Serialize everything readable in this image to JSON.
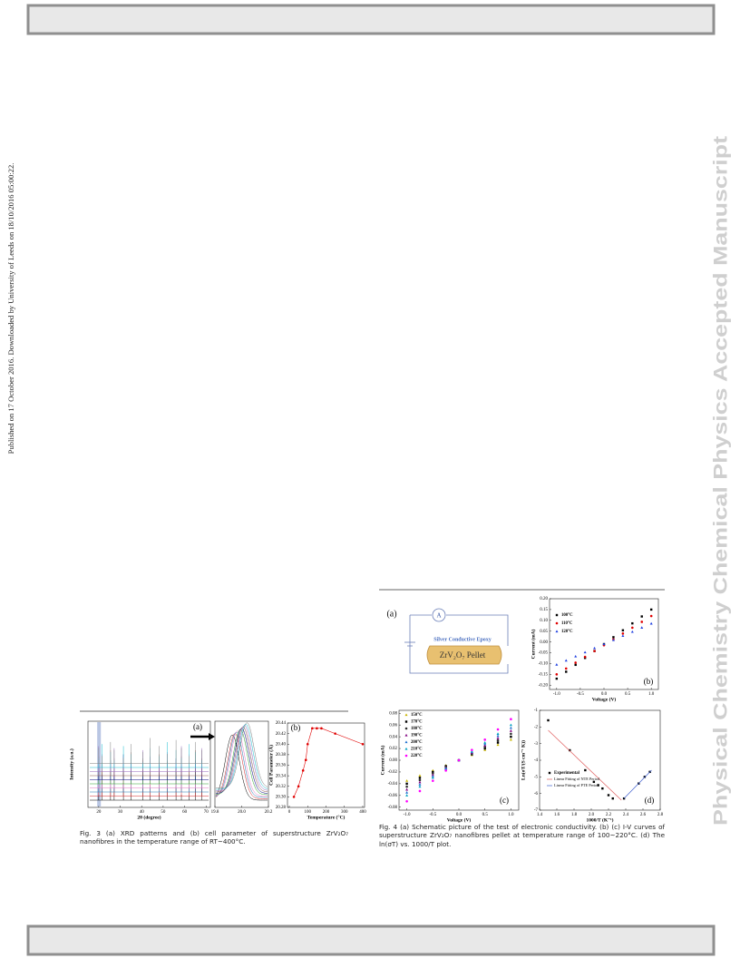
{
  "sidebar": {
    "left": "Published on 17 October 2016. Downloaded by University of Leeds on 18/10/2016 05:00:22.",
    "right": "Physical Chemistry Chemical Physics Accepted Manuscript"
  },
  "figure3": {
    "caption": "Fig. 3 (a) XRD patterns and (b) cell parameter of superstructure ZrV₂O₇ nanofibres in the temperature range of RT~400°C.",
    "a": {
      "label": "(a)",
      "xlabel": "2θ (degree)",
      "ylabel": "Intensity (a.u.)",
      "xlim": [
        15,
        72
      ],
      "xticks": [
        20,
        30,
        40,
        50,
        60,
        70
      ],
      "peaks": [
        20.0,
        21.6,
        25.5,
        27.2,
        31.5,
        35.0,
        40.5,
        44.0,
        48.2,
        52.0,
        56.0,
        58.5,
        62.0,
        65.0,
        68.0
      ],
      "pattern_colors": [
        "#000000",
        "#d62728",
        "#1f77b4",
        "#e377c2",
        "#2ca02c",
        "#000080",
        "#8c564b",
        "#9467bd",
        "#17becf",
        "#7f7f7f"
      ],
      "inset_xlim": [
        19.8,
        20.2
      ],
      "inset_xticks": [
        {
          "value": 19.8,
          "label": "19.8"
        },
        {
          "value": 20.0,
          "label": "20.0"
        },
        {
          "value": 20.2,
          "label": "20.2"
        }
      ],
      "inset_centers": [
        19.93,
        19.95,
        19.96,
        19.97,
        19.99,
        20.0,
        20.01,
        20.02,
        20.03,
        20.04
      ]
    },
    "b": {
      "label": "(b)",
      "xlabel": "Temperature (°C)",
      "ylabel": "Cell Parameter (Å)",
      "xlim": [
        -10,
        410
      ],
      "xticks": [
        0,
        100,
        200,
        300,
        400
      ],
      "ylim": [
        20.28,
        20.44
      ],
      "yticks": [
        {
          "value": 20.28,
          "label": "20.28"
        },
        {
          "value": 20.3,
          "label": "20.30"
        },
        {
          "value": 20.32,
          "label": "20.32"
        },
        {
          "value": 20.34,
          "label": "20.34"
        },
        {
          "value": 20.36,
          "label": "20.36"
        },
        {
          "value": 20.38,
          "label": "20.38"
        },
        {
          "value": 20.4,
          "label": "20.40"
        },
        {
          "value": 20.42,
          "label": "20.42"
        },
        {
          "value": 20.44,
          "label": "20.44"
        }
      ],
      "x": [
        25,
        50,
        75,
        90,
        100,
        125,
        150,
        175,
        250,
        400
      ],
      "series": [
        {
          "color": "#e00000",
          "values": [
            20.3,
            20.32,
            20.35,
            20.37,
            20.4,
            20.43,
            20.43,
            20.43,
            20.42,
            20.4
          ]
        }
      ]
    }
  },
  "figure4": {
    "caption": "Fig. 4 (a) Schematic picture of the test of electronic conductivity. (b) (c) I-V curves of superstructure ZrV₂O₇ nanofibres pellet at temperature range of 100~220°C. (d) The ln(σT) vs. 1000/T plot.",
    "a": {
      "label": "(a)",
      "meter": "A",
      "epoxy": "Silver Conductive Epoxy",
      "pellet": "ZrV₂O₇ Pellet"
    },
    "b": {
      "label": "(b)",
      "xlabel": "Voltage (V)",
      "ylabel": "Current (mA)",
      "xlim": [
        -1.15,
        1.15
      ],
      "xticks": [
        {
          "value": -1.0,
          "label": "-1.0"
        },
        {
          "value": -0.5,
          "label": "-0.5"
        },
        {
          "value": 0.0,
          "label": "0.0"
        },
        {
          "value": 0.5,
          "label": "0.5"
        },
        {
          "value": 1.0,
          "label": "1.0"
        }
      ],
      "ylim": [
        -0.22,
        0.2
      ],
      "yticks": [
        {
          "value": -0.2,
          "label": "-0.20"
        },
        {
          "value": -0.15,
          "label": "-0.15"
        },
        {
          "value": -0.1,
          "label": "-0.10"
        },
        {
          "value": -0.05,
          "label": "-0.05"
        },
        {
          "value": 0,
          "label": "0.00"
        },
        {
          "value": 0.05,
          "label": "0.05"
        },
        {
          "value": 0.1,
          "label": "0.10"
        },
        {
          "value": 0.15,
          "label": "0.15"
        },
        {
          "value": 0.2,
          "label": "0.20"
        }
      ],
      "x": [
        -1,
        -0.8,
        -0.6,
        -0.4,
        -0.2,
        0,
        0.2,
        0.4,
        0.6,
        0.8,
        1
      ],
      "series": [
        {
          "name": "100°C",
          "color": "#000000",
          "marker": "square",
          "values": [
            -0.17,
            -0.138,
            -0.106,
            -0.074,
            -0.042,
            -0.01,
            0.022,
            0.054,
            0.086,
            0.118,
            0.15
          ]
        },
        {
          "name": "110°C",
          "color": "#e00000",
          "marker": "circle",
          "values": [
            -0.15,
            -0.123,
            -0.096,
            -0.069,
            -0.042,
            -0.015,
            0.012,
            0.039,
            0.066,
            0.093,
            0.12
          ]
        },
        {
          "name": "120°C",
          "color": "#2040e0",
          "marker": "triangle",
          "values": [
            -0.105,
            -0.086,
            -0.067,
            -0.048,
            -0.029,
            -0.01,
            0.009,
            0.028,
            0.047,
            0.066,
            0.085
          ]
        }
      ]
    },
    "c": {
      "label": "(c)",
      "xlabel": "Voltage (V)",
      "ylabel": "Current (mA)",
      "xlim": [
        -1.15,
        1.15
      ],
      "xticks": [
        {
          "value": -1.0,
          "label": "-1.0"
        },
        {
          "value": -0.5,
          "label": "-0.5"
        },
        {
          "value": 0.0,
          "label": "0.0"
        },
        {
          "value": 0.5,
          "label": "0.5"
        },
        {
          "value": 1.0,
          "label": "1.0"
        }
      ],
      "ylim": [
        -0.085,
        0.085
      ],
      "yticks": [
        {
          "value": -0.08,
          "label": "-0.08"
        },
        {
          "value": -0.06,
          "label": "-0.06"
        },
        {
          "value": -0.04,
          "label": "-0.04"
        },
        {
          "value": -0.02,
          "label": "-0.02"
        },
        {
          "value": 0,
          "label": "0.00"
        },
        {
          "value": 0.02,
          "label": "0.02"
        },
        {
          "value": 0.04,
          "label": "0.04"
        },
        {
          "value": 0.06,
          "label": "0.06"
        },
        {
          "value": 0.08,
          "label": "0.08"
        }
      ],
      "x": [
        -1,
        -0.75,
        -0.5,
        -0.25,
        0,
        0.25,
        0.5,
        0.75,
        1
      ],
      "series": [
        {
          "name": "150°C",
          "color": "#c8b400",
          "marker": "triangle",
          "values": [
            -0.035,
            -0.0263,
            -0.0175,
            -0.0088,
            0,
            0.0088,
            0.0175,
            0.0263,
            0.035
          ]
        },
        {
          "name": "170°C",
          "color": "#000000",
          "marker": "square",
          "values": [
            -0.04,
            -0.03,
            -0.02,
            -0.01,
            0,
            0.01,
            0.02,
            0.03,
            0.04
          ]
        },
        {
          "name": "180°C",
          "color": "#303030",
          "marker": "circle",
          "values": [
            -0.045,
            -0.0338,
            -0.0225,
            -0.0113,
            0,
            0.0113,
            0.0225,
            0.0338,
            0.045
          ]
        },
        {
          "name": "190°C",
          "color": "#800080",
          "marker": "triangle",
          "values": [
            -0.05,
            -0.0375,
            -0.025,
            -0.0125,
            0,
            0.0125,
            0.025,
            0.0375,
            0.05
          ]
        },
        {
          "name": "200°C",
          "color": "#1f6fd0",
          "marker": "triangle",
          "values": [
            -0.055,
            -0.0413,
            -0.0275,
            -0.0138,
            0,
            0.0138,
            0.0275,
            0.0413,
            0.055
          ]
        },
        {
          "name": "210°C",
          "color": "#00a0c0",
          "marker": "triangle",
          "values": [
            -0.06,
            -0.045,
            -0.03,
            -0.015,
            0,
            0.015,
            0.03,
            0.045,
            0.06
          ]
        },
        {
          "name": "220°C",
          "color": "#ff00ff",
          "marker": "circle",
          "values": [
            -0.07,
            -0.0525,
            -0.035,
            -0.0175,
            0,
            0.0175,
            0.035,
            0.0525,
            0.07
          ]
        }
      ]
    },
    "d": {
      "label": "(d)",
      "xlabel": "1000/T (K⁻¹)",
      "ylabel": "Ln(σT/(S cm⁻¹ K))",
      "xlim": [
        1.4,
        2.8
      ],
      "xticks": [
        1.4,
        1.6,
        1.8,
        {
          "value": 2.0,
          "label": "2.0"
        },
        2.2,
        2.4,
        2.6,
        2.8
      ],
      "ylim": [
        -7,
        -1
      ],
      "yticks": [
        -7,
        -6,
        -5,
        -4,
        -3,
        -2,
        -1
      ],
      "x": [
        1.5,
        1.75,
        1.93,
        2.03,
        2.08,
        2.13,
        2.2,
        2.25,
        2.38,
        2.55,
        2.62,
        2.68
      ],
      "series": [
        {
          "name": "Experimental",
          "color": "#000000",
          "marker": "square",
          "values": [
            -1.6,
            -3.4,
            -4.6,
            -5.3,
            -5.5,
            -5.7,
            -6.1,
            -6.3,
            -6.3,
            -5.4,
            -5.0,
            -4.7
          ]
        }
      ],
      "fits": [
        {
          "name": "Linear Fitting of NTE Period",
          "color": "#e06060",
          "x": [
            1.5,
            2.35
          ],
          "values": [
            -2.2,
            -6.4
          ]
        },
        {
          "name": "Linear Fitting of PTE Period",
          "color": "#4060d0",
          "x": [
            2.38,
            2.7
          ],
          "values": [
            -6.3,
            -4.6
          ]
        }
      ]
    }
  }
}
